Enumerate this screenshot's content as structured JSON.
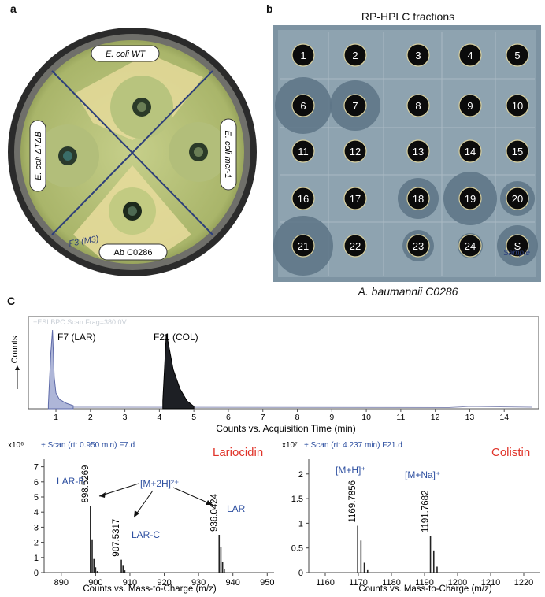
{
  "panel_a": {
    "letter": "a",
    "labels": {
      "ecoli_wt": "E. coli WT",
      "ecoli_dtdb": "E. coli ΔTΔB",
      "ecoli_mcr": "E. coli mcr-1",
      "ab": "Ab C0286",
      "handwriting": "F3 (M3)"
    }
  },
  "panel_b": {
    "letter": "b",
    "title": "RP-HPLC fractions",
    "organism": "A. baumannii C0286",
    "wells": [
      "1",
      "2",
      "3",
      "4",
      "5",
      "6",
      "7",
      "8",
      "9",
      "10",
      "11",
      "12",
      "13",
      "14",
      "15",
      "16",
      "17",
      "18",
      "19",
      "20",
      "21",
      "22",
      "23",
      "24",
      "S"
    ],
    "handwriting": "Sample"
  },
  "panel_c": {
    "letter": "C",
    "chromatogram": {
      "header": "+ESI BPC Scan Frag=380.0V",
      "ylabel": "Counts",
      "xlabel": "Counts vs. Acquisition Time (min)",
      "peak1_label": "F7 (LAR)",
      "peak2_label": "F21 (COL)"
    },
    "ms_left": {
      "exp": "x10⁶",
      "header": "+ Scan (rt: 0.950 min) F7.d",
      "title": "Lariocidin",
      "xlabel": "Counts vs. Mass-to-Charge (m/z)",
      "ion_label": "[M+2H]²⁺",
      "labels": {
        "larb": "LAR-B",
        "larc": "LAR-C",
        "lar": "LAR"
      },
      "peak_labels": [
        "898.5269",
        "907.5317",
        "936.0424"
      ]
    },
    "ms_right": {
      "exp": "x10⁷",
      "header": "+ Scan (rt: 4.237 min) F21.d",
      "title": "Colistin",
      "xlabel": "Counts vs. Mass-to-Charge (m/z)",
      "ion1": "[M+H]⁺",
      "ion2": "[M+Na]⁺",
      "peak_labels": [
        "1169.7856",
        "1191.7682"
      ]
    }
  },
  "chart_data": [
    {
      "type": "area",
      "title": "",
      "xlabel": "Counts vs. Acquisition Time (min)",
      "ylabel": "Counts",
      "xlim": [
        0.2,
        15
      ],
      "x_ticks": [
        1,
        2,
        3,
        4,
        5,
        6,
        7,
        8,
        9,
        10,
        11,
        12,
        13,
        14
      ],
      "series": [
        {
          "name": "F7 (LAR)",
          "x": [
            0.78,
            0.85,
            0.9,
            0.95,
            1.0,
            1.1,
            1.3,
            1.5
          ],
          "y": [
            0.05,
            0.7,
            1.0,
            0.4,
            0.2,
            0.12,
            0.07,
            0.04
          ]
        },
        {
          "name": "F21 (COL)",
          "x": [
            4.1,
            4.2,
            4.25,
            4.4,
            4.6,
            4.8,
            5.0
          ],
          "y": [
            0.1,
            0.95,
            0.85,
            0.5,
            0.25,
            0.1,
            0.03
          ]
        }
      ]
    },
    {
      "type": "bar",
      "title": "Lariocidin",
      "xlabel": "Counts vs. Mass-to-Charge (m/z)",
      "ylabel": "x10⁶",
      "xlim": [
        885,
        952
      ],
      "ylim": [
        0,
        7.5
      ],
      "x_ticks": [
        890,
        900,
        910,
        920,
        930,
        940,
        950
      ],
      "y_ticks": [
        0,
        1,
        2,
        3,
        4,
        5,
        6,
        7
      ],
      "x": [
        898.5,
        899.0,
        899.5,
        900.0,
        900.5,
        907.5,
        908.0,
        908.5,
        936.0,
        936.5,
        937.0,
        937.5
      ],
      "values": [
        4.4,
        2.2,
        0.9,
        0.35,
        0.1,
        0.85,
        0.45,
        0.15,
        2.5,
        1.7,
        0.7,
        0.25
      ]
    },
    {
      "type": "bar",
      "title": "Colistin",
      "xlabel": "Counts vs. Mass-to-Charge (m/z)",
      "ylabel": "x10⁷",
      "xlim": [
        1155,
        1225
      ],
      "ylim": [
        0,
        2.3
      ],
      "x_ticks": [
        1160,
        1170,
        1180,
        1190,
        1200,
        1210,
        1220
      ],
      "y_ticks": [
        0,
        0.5,
        1,
        1.5,
        2
      ],
      "x": [
        1169.8,
        1170.8,
        1171.8,
        1172.8,
        1191.8,
        1192.8,
        1193.8
      ],
      "values": [
        0.95,
        0.65,
        0.2,
        0.05,
        0.75,
        0.45,
        0.12
      ]
    }
  ]
}
